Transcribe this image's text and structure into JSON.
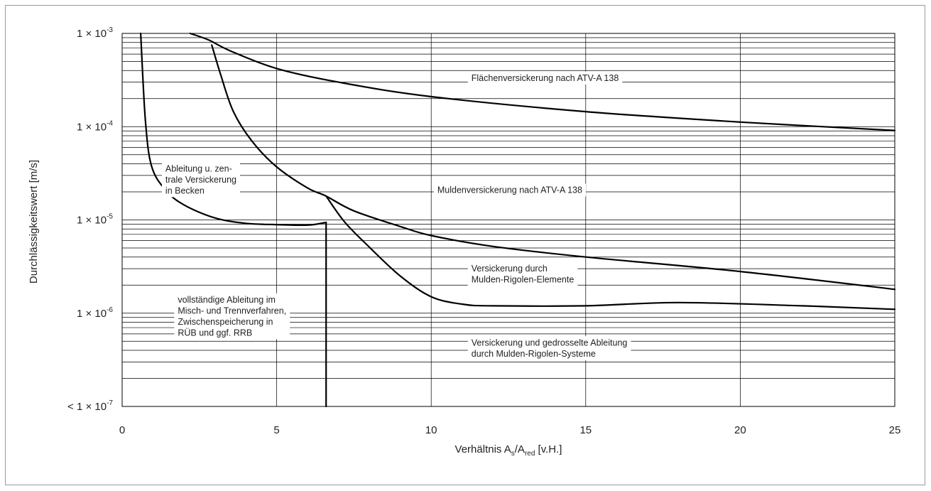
{
  "chart_data": {
    "type": "line",
    "title": "",
    "ylabel": "Durchlässigkeitswert [m/s]",
    "xlabel": {
      "prefix": "Verhältnis A",
      "sub1": "s",
      "mid": "/A",
      "sub2": "red",
      "suffix": " [v.H.]"
    },
    "xlim": [
      0,
      25
    ],
    "ylim": [
      1e-07,
      0.001
    ],
    "yscale": "log",
    "grid": "vertical at x ticks, horizontal at log minor ticks",
    "x_ticks": [
      {
        "value": 0,
        "label": "0"
      },
      {
        "value": 5,
        "label": "5"
      },
      {
        "value": 10,
        "label": "10"
      },
      {
        "value": 15,
        "label": "15"
      },
      {
        "value": 20,
        "label": "20"
      },
      {
        "value": 25,
        "label": "25"
      }
    ],
    "y_ticks": [
      {
        "value": 0.001,
        "prefix": "1 × 10",
        "exp": "-3"
      },
      {
        "value": 0.0001,
        "prefix": "1 × 10",
        "exp": "-4"
      },
      {
        "value": 1e-05,
        "prefix": "1 × 10",
        "exp": "-5"
      },
      {
        "value": 1e-06,
        "prefix": "1 × 10",
        "exp": "-6"
      },
      {
        "value": 1e-07,
        "prefix": "< 1 × 10",
        "exp": "-7"
      }
    ],
    "series": [
      {
        "points": [
          [
            2.2,
            0.001
          ],
          [
            2.8,
            0.00085
          ],
          [
            3.5,
            0.00065
          ],
          [
            5,
            0.00042
          ],
          [
            7,
            0.0003
          ],
          [
            10,
            0.00021
          ],
          [
            15,
            0.000145
          ],
          [
            20,
            0.000112
          ],
          [
            25,
            9.1e-05
          ]
        ]
      },
      {
        "points": [
          [
            2.9,
            0.00075
          ],
          [
            3.2,
            0.00035
          ],
          [
            3.6,
            0.000145
          ],
          [
            4.2,
            7e-05
          ],
          [
            5,
            3.7e-05
          ],
          [
            6,
            2.2e-05
          ],
          [
            6.6,
            1.8e-05
          ],
          [
            7.5,
            1.25e-05
          ],
          [
            9,
            8.5e-06
          ],
          [
            10,
            6.8e-06
          ],
          [
            12,
            5.2e-06
          ],
          [
            15,
            4e-06
          ],
          [
            20,
            2.8e-06
          ],
          [
            25,
            1.8e-06
          ]
        ]
      },
      {
        "points": [
          [
            6.6,
            1.8e-05
          ],
          [
            7.2,
            9.5e-06
          ],
          [
            8,
            5.1e-06
          ],
          [
            9,
            2.5e-06
          ],
          [
            10,
            1.5e-06
          ],
          [
            11,
            1.25e-06
          ],
          [
            12,
            1.2e-06
          ],
          [
            15,
            1.2e-06
          ],
          [
            18,
            1.3e-06
          ],
          [
            22,
            1.2e-06
          ],
          [
            25,
            1.1e-06
          ]
        ]
      },
      {
        "points": [
          [
            0.6,
            0.001
          ],
          [
            0.75,
            0.00012
          ],
          [
            0.95,
            3.8e-05
          ],
          [
            1.4,
            2.1e-05
          ],
          [
            2,
            1.45e-05
          ],
          [
            3,
            1.05e-05
          ],
          [
            4,
            9.2e-06
          ],
          [
            5,
            8.9e-06
          ],
          [
            6,
            8.8e-06
          ],
          [
            6.6,
            9.4e-06
          ]
        ]
      },
      {
        "points": [
          [
            6.6,
            9.4e-06
          ],
          [
            6.6,
            1e-07
          ]
        ]
      }
    ],
    "annotations": [
      {
        "x": 11.3,
        "y": 0.00031,
        "anchor": "start",
        "lines": [
          "Flächenversickerung nach ATV-A 138"
        ]
      },
      {
        "x": 10.2,
        "y": 1.95e-05,
        "anchor": "start",
        "lines": [
          "Muldenversickerung nach ATV-A 138"
        ]
      },
      {
        "x": 11.3,
        "y": 2.8e-06,
        "anchor": "start",
        "lines": [
          "Versickerung durch",
          "Mulden-Rigolen-Elemente"
        ]
      },
      {
        "x": 11.3,
        "y": 4.5e-07,
        "anchor": "start",
        "lines": [
          "Versickerung und gedrosselte Ableitung",
          "durch Mulden-Rigolen-Systeme"
        ]
      },
      {
        "x": 1.4,
        "y": 3.3e-05,
        "anchor": "start",
        "lines": [
          "Ableitung u. zen-",
          "trale Versickerung",
          "in Becken"
        ]
      },
      {
        "x": 1.8,
        "y": 1.3e-06,
        "anchor": "start",
        "lines": [
          "vollständige Ableitung im",
          "Misch- und Trennverfahren,",
          "Zwischenspeicherung in",
          "RÜB und ggf. RRB"
        ]
      }
    ]
  }
}
